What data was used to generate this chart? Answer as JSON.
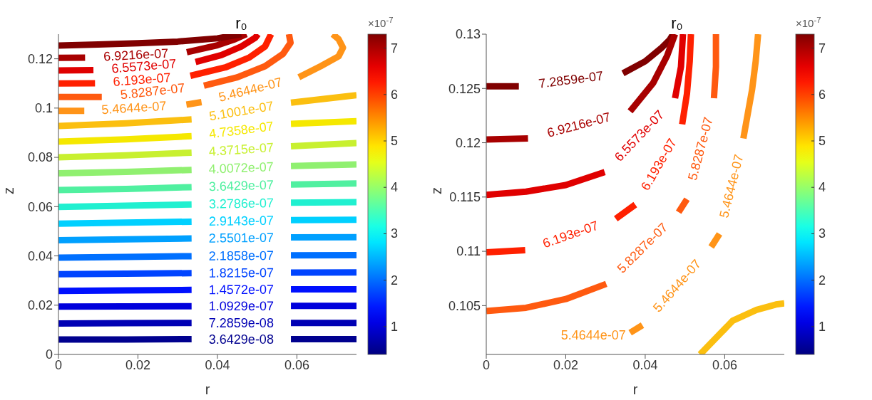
{
  "chart_data": [
    {
      "type": "line",
      "xlabel": "r",
      "ylabel": "z",
      "xlim": [
        0,
        0.075
      ],
      "ylim": [
        0,
        0.13
      ],
      "xticks": [
        0,
        0.02,
        0.04,
        0.06
      ],
      "yticks": [
        0,
        0.02,
        0.04,
        0.06,
        0.08,
        0.1,
        0.12
      ],
      "clim": [
        0.4,
        7.3
      ],
      "cticks": [
        1,
        2,
        3,
        4,
        5,
        6,
        7
      ],
      "clabel": "×10$^{-7}$",
      "annotations": [
        {
          "text": "r₀",
          "x": 0.046,
          "y": 0.13
        }
      ],
      "series": [
        {
          "name": "3.6429e-08",
          "color": "#00008f",
          "x": [
            0,
            0.017,
            0.0335,
            0.046,
            0.0585,
            0.075
          ],
          "values": [
            0.0061,
            0.0061,
            0.0062,
            null,
            0.0062,
            0.0062
          ]
        },
        {
          "name": "7.2859e-08",
          "color": "#0000b4",
          "x": [
            0,
            0.017,
            0.0335,
            0.046,
            0.0585,
            0.075
          ],
          "values": [
            0.0126,
            0.0127,
            0.0128,
            null,
            0.0128,
            0.0128
          ]
        },
        {
          "name": "1.0929e-07",
          "color": "#0000dc",
          "x": [
            0,
            0.017,
            0.0335,
            0.046,
            0.0585,
            0.075
          ],
          "values": [
            0.0194,
            0.0195,
            0.0196,
            null,
            0.0197,
            0.0197
          ]
        },
        {
          "name": "1.4572e-07",
          "color": "#0010ff",
          "x": [
            0,
            0.017,
            0.0335,
            0.046,
            0.0585,
            0.075
          ],
          "values": [
            0.0258,
            0.026,
            0.0262,
            null,
            0.0264,
            0.0264
          ]
        },
        {
          "name": "1.8215e-07",
          "color": "#0044ff",
          "x": [
            0,
            0.017,
            0.0335,
            0.046,
            0.0585,
            0.075
          ],
          "values": [
            0.0326,
            0.0328,
            0.033,
            null,
            0.0332,
            0.0333
          ]
        },
        {
          "name": "2.1858e-07",
          "color": "#0070ff",
          "x": [
            0,
            0.017,
            0.0335,
            0.046,
            0.0585,
            0.075
          ],
          "values": [
            0.0393,
            0.0396,
            0.0399,
            null,
            0.0402,
            0.0403
          ]
        },
        {
          "name": "2.5501e-07",
          "color": "#00a0ff",
          "x": [
            0,
            0.017,
            0.0335,
            0.046,
            0.0585,
            0.075
          ],
          "values": [
            0.0464,
            0.0467,
            0.0471,
            null,
            0.0475,
            0.0476
          ]
        },
        {
          "name": "2.9143e-07",
          "color": "#00d0ff",
          "x": [
            0,
            0.017,
            0.0335,
            0.046,
            0.0585,
            0.075
          ],
          "values": [
            0.0531,
            0.0535,
            0.0539,
            null,
            0.0545,
            0.0547
          ]
        },
        {
          "name": "3.2786e-07",
          "color": "#20f0d0",
          "x": [
            0,
            0.017,
            0.0335,
            0.046,
            0.0585,
            0.075
          ],
          "values": [
            0.0599,
            0.0604,
            0.0609,
            null,
            0.0616,
            0.0618
          ]
        },
        {
          "name": "3.6429e-07",
          "color": "#50f0a0",
          "x": [
            0,
            0.017,
            0.0335,
            0.046,
            0.0585,
            0.075
          ],
          "values": [
            0.0667,
            0.0672,
            0.0679,
            null,
            0.069,
            0.0694
          ]
        },
        {
          "name": "4.0072e-07",
          "color": "#90f070",
          "x": [
            0,
            0.017,
            0.0335,
            0.046,
            0.0585,
            0.075
          ],
          "values": [
            0.0735,
            0.0741,
            0.0749,
            null,
            0.0765,
            0.0771
          ]
        },
        {
          "name": "4.3715e-07",
          "color": "#c8f030",
          "x": [
            0,
            0.017,
            0.0335,
            0.046,
            0.0585,
            0.075
          ],
          "values": [
            0.08,
            0.0808,
            0.0819,
            null,
            0.0845,
            0.0858
          ]
        },
        {
          "name": "4.7358e-07",
          "color": "#f5e800",
          "x": [
            0,
            0.017,
            0.0335,
            0.046,
            0.0585,
            0.075
          ],
          "values": [
            0.0864,
            0.0873,
            0.0886,
            null,
            0.0936,
            0.0947
          ]
        },
        {
          "name": "5.1001e-07",
          "color": "#fbbf10",
          "x": [
            0,
            0.017,
            0.0335,
            0.046,
            0.0585,
            0.075
          ],
          "values": [
            0.0927,
            0.0938,
            0.0954,
            null,
            0.1022,
            0.1052
          ]
        },
        {
          "name": "5.4644e-07",
          "color": "#ff9418",
          "x": [
            0,
            0.0065,
            0.019,
            0.0322,
            0.036,
            0.0483,
            0.0605,
            0.066,
            0.0705,
            0.0716,
            0.0705,
            0.069
          ],
          "values": [
            0.0989,
            0.0989,
            null,
            0.1014,
            0.1024,
            null,
            0.1125,
            0.117,
            0.121,
            0.1245,
            0.128,
            0.13
          ]
        },
        {
          "name": "5.8287e-07",
          "color": "#ff5a10",
          "x": [
            0,
            0.0109,
            0.0237,
            0.0366,
            0.045,
            0.052,
            0.0565,
            0.0584,
            0.058
          ],
          "values": [
            0.1045,
            0.1045,
            null,
            0.1091,
            0.1125,
            0.117,
            0.122,
            0.1265,
            0.13
          ]
        },
        {
          "name": "6.193e-07",
          "color": "#ff2000",
          "x": [
            0,
            0.0092,
            0.021,
            0.0332,
            0.042,
            0.048,
            0.052,
            0.0535
          ],
          "values": [
            0.11,
            0.1101,
            null,
            0.1131,
            0.1165,
            0.1205,
            0.125,
            0.13
          ]
        },
        {
          "name": "6.5573e-07",
          "color": "#e00000",
          "x": [
            0,
            0.0088,
            0.0215,
            0.0345,
            0.041,
            0.046,
            0.0495,
            0.0502
          ],
          "values": [
            0.1153,
            0.1154,
            null,
            0.1187,
            0.1215,
            0.125,
            0.1285,
            0.13
          ]
        },
        {
          "name": "6.9216e-07",
          "color": "#a80000",
          "x": [
            0,
            0.0067,
            0.0195,
            0.0323,
            0.04,
            0.0445,
            0.0473
          ],
          "values": [
            0.1204,
            0.1205,
            null,
            0.1227,
            0.1255,
            0.128,
            0.13
          ]
        },
        {
          "color": "#800000",
          "x": [
            0,
            0.01,
            0.02,
            0.03,
            0.04,
            0.046
          ],
          "values": [
            0.1254,
            0.1258,
            0.1263,
            0.127,
            0.1283,
            0.13
          ]
        }
      ]
    },
    {
      "type": "line",
      "xlabel": "r",
      "ylabel": "z",
      "xlim": [
        0,
        0.075
      ],
      "ylim": [
        0.1005,
        0.13
      ],
      "xticks": [
        0,
        0.02,
        0.04,
        0.06
      ],
      "yticks": [
        0.105,
        0.11,
        0.115,
        0.12,
        0.125,
        0.13
      ],
      "clim": [
        0.4,
        7.3
      ],
      "cticks": [
        1,
        2,
        3,
        4,
        5,
        6,
        7
      ],
      "clabel": "×10$^{-7}$",
      "annotations": [
        {
          "text": "r₀",
          "x": 0.048,
          "y": 0.13
        }
      ],
      "series": [
        {
          "name": "7.2859e-07",
          "color": "#800000",
          "x": [
            0,
            0.0082,
            0.0213,
            0.0344,
            0.04,
            0.044,
            0.0462,
            0.047
          ],
          "values": [
            0.1252,
            0.1252,
            null,
            0.1264,
            0.1275,
            0.1287,
            0.1295,
            0.13
          ]
        },
        {
          "name": "6.9216e-07",
          "color": "#a80000",
          "x": [
            0,
            0.0105,
            0.0233,
            0.0362,
            0.042,
            0.0455,
            0.0475
          ],
          "values": [
            0.1203,
            0.1204,
            null,
            0.1229,
            0.1255,
            0.128,
            0.13
          ]
        },
        {
          "name": "6.5573e-07",
          "color": "#e00000",
          "x": [
            0,
            0.01,
            0.02,
            0.0298,
            0.0385,
            0.0475,
            0.049,
            0.0495
          ],
          "values": [
            0.1152,
            0.1155,
            0.1161,
            0.1173,
            null,
            0.1241,
            0.127,
            0.13
          ]
        },
        {
          "name": "6.193e-07",
          "color": "#ff2000",
          "x": [
            0,
            0.0098,
            0.0212,
            0.0326,
            0.0375,
            0.0434,
            0.0493,
            0.0505,
            0.0512,
            0.0515
          ],
          "values": [
            0.1099,
            0.1101,
            null,
            0.113,
            0.1143,
            null,
            0.1217,
            0.1245,
            0.1275,
            0.13
          ]
        },
        {
          "name": "5.8287e-07",
          "color": "#ff5a10",
          "x": [
            0,
            0.01,
            0.02,
            0.0302,
            0.0393,
            0.0484,
            0.0505,
            0.0539,
            0.0573,
            0.0578,
            0.0578
          ],
          "values": [
            0.1045,
            0.1048,
            0.1056,
            0.107,
            null,
            0.1136,
            0.1148,
            null,
            0.1241,
            0.127,
            0.13
          ]
        },
        {
          "name": "5.4644e-07",
          "color": "#ff9418",
          "x": [
            0.0362,
            0.0393,
            0.048,
            0.0566,
            0.0587,
            0.0617,
            0.0647,
            0.0669,
            0.0678,
            0.0684
          ],
          "values": [
            0.1025,
            0.1032,
            null,
            0.1104,
            0.1116,
            null,
            0.1204,
            0.1249,
            0.1275,
            0.13
          ]
        },
        {
          "color": "#fbbf10",
          "x": [
            0.0538,
            0.062,
            0.068,
            0.0729,
            0.075
          ],
          "values": [
            0.1005,
            0.1036,
            0.1046,
            0.1051,
            0.1052
          ]
        }
      ]
    }
  ]
}
